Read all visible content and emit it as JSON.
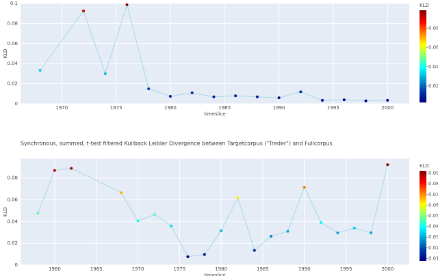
{
  "chart_data": [
    {
      "type": "scatter-line",
      "x": [
        1968,
        1972,
        1974,
        1976,
        1978,
        1980,
        1982,
        1984,
        1986,
        1988,
        1990,
        1992,
        1994,
        1996,
        1998,
        2000
      ],
      "values": [
        0.0333,
        0.0925,
        0.03,
        0.0986,
        0.015,
        0.0075,
        0.011,
        0.007,
        0.008,
        0.007,
        0.006,
        0.012,
        0.0035,
        0.004,
        0.003,
        0.0035
      ],
      "xlim": [
        1966.2,
        2002
      ],
      "xticks": [
        1970,
        1975,
        1980,
        1985,
        1990,
        1995,
        2000
      ],
      "ylim": [
        0,
        0.1
      ],
      "yticks": [
        0,
        0.02,
        0.04,
        0.06,
        0.08,
        0.1
      ],
      "xlabel": "timeslice",
      "ylabel": "KLD",
      "grid": true,
      "line_color": "#a6d8e6",
      "colorscale": "Jet",
      "colorbar_title": "KLD",
      "clim": [
        0.003,
        0.0986
      ],
      "cticks": [
        0.02,
        0.04,
        0.06,
        0.08
      ]
    },
    {
      "type": "scatter-line",
      "title": "Synchronous, summed, t-test filtered Kullback Leibler Divergence between Targetcorpus (\"Treder\") and Fullcorpus",
      "x": [
        1958,
        1960,
        1962,
        1968,
        1970,
        1972,
        1974,
        1976,
        1978,
        1980,
        1982,
        1984,
        1986,
        1988,
        1990,
        1992,
        1994,
        1996,
        1998,
        2000
      ],
      "values": [
        0.0477,
        0.087,
        0.089,
        0.0665,
        0.0406,
        0.0465,
        0.036,
        0.0077,
        0.0097,
        0.0316,
        0.062,
        0.0135,
        0.0265,
        0.031,
        0.0716,
        0.039,
        0.0297,
        0.034,
        0.0297,
        0.0923
      ],
      "xlim": [
        1955.9,
        2002.6
      ],
      "xticks": [
        1960,
        1965,
        1970,
        1975,
        1980,
        1985,
        1990,
        1995,
        2000
      ],
      "ylim": [
        0,
        0.098
      ],
      "yticks": [
        0,
        0.02,
        0.04,
        0.06,
        0.08
      ],
      "xlabel": "timeslice",
      "ylabel": "KLD",
      "grid": true,
      "line_color": "#a6d8e6",
      "colorscale": "Jet",
      "colorbar_title": "KLD",
      "clim": [
        0.0077,
        0.0923
      ],
      "cticks": [
        0.01,
        0.02,
        0.03,
        0.04,
        0.05,
        0.06,
        0.07,
        0.08,
        0.09
      ]
    }
  ]
}
